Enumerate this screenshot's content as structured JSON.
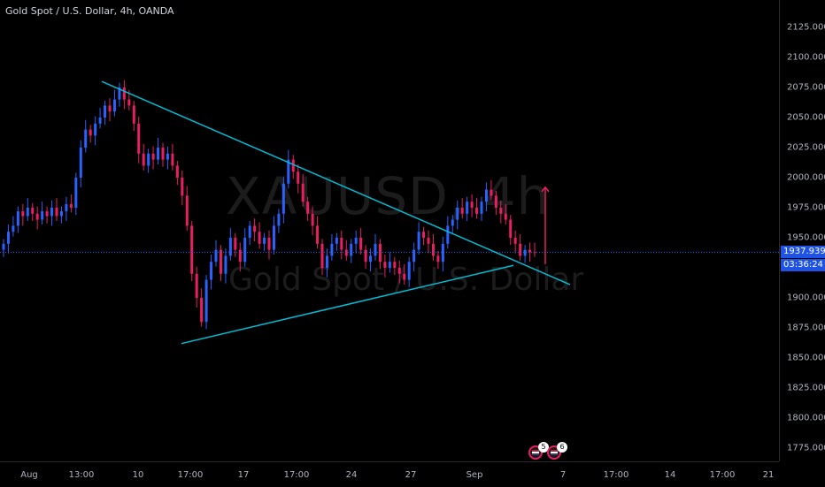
{
  "header": {
    "title": "Gold Spot / U.S. Dollar, 4h, OANDA"
  },
  "watermark": {
    "symbol": "XAUUSD, 4h",
    "name": "Gold Spot / U.S. Dollar"
  },
  "price_axis": {
    "labels": [
      "2125.000",
      "2100.000",
      "2075.000",
      "2050.000",
      "2025.000",
      "2000.000",
      "1975.000",
      "1950.000",
      "1900.000",
      "1875.000",
      "1850.000",
      "1825.000",
      "1800.000",
      "1775.000"
    ],
    "current_price": "1937.939",
    "countdown": "03:36:24"
  },
  "time_axis": {
    "labels": [
      "Aug",
      "13:00",
      "10",
      "17:00",
      "17",
      "17:00",
      "24",
      "27",
      "Sep",
      "7",
      "17:00",
      "14",
      "17:00",
      "21"
    ]
  },
  "events": [
    {
      "count": "5"
    },
    {
      "count": "6"
    }
  ],
  "colors": {
    "up": "#2962ff",
    "down": "#e91e63",
    "trendline": "#00bcd4",
    "arrow": "#e91e63",
    "price_line": "#2962ff"
  },
  "chart_data": {
    "type": "candlestick",
    "title": "Gold Spot / U.S. Dollar, 4h, OANDA",
    "ylim": [
      1770,
      2135
    ],
    "x_ticks": [
      "Aug",
      "13:00",
      "10",
      "17:00",
      "17",
      "17:00",
      "24",
      "27",
      "Sep",
      "7",
      "17:00",
      "14",
      "17:00",
      "21"
    ],
    "close_path": [
      1945,
      1955,
      1960,
      1972,
      1968,
      1975,
      1970,
      1965,
      1972,
      1968,
      1975,
      1968,
      1972,
      1978,
      1975,
      2000,
      2025,
      2040,
      2035,
      2045,
      2050,
      2060,
      2055,
      2065,
      2075,
      2065,
      2060,
      2045,
      2020,
      2010,
      2020,
      2015,
      2025,
      2015,
      2020,
      2010,
      2000,
      1985,
      1960,
      1920,
      1900,
      1880,
      1915,
      1930,
      1940,
      1920,
      1935,
      1950,
      1940,
      1930,
      1950,
      1960,
      1955,
      1945,
      1950,
      1940,
      1960,
      1970,
      1995,
      2015,
      2005,
      1995,
      1980,
      1970,
      1960,
      1945,
      1925,
      1935,
      1945,
      1950,
      1940,
      1935,
      1945,
      1950,
      1940,
      1930,
      1935,
      1945,
      1930,
      1925,
      1930,
      1925,
      1920,
      1915,
      1930,
      1940,
      1955,
      1950,
      1945,
      1935,
      1930,
      1945,
      1960,
      1965,
      1975,
      1970,
      1980,
      1975,
      1970,
      1980,
      1990,
      1985,
      1975,
      1970,
      1965,
      1950,
      1945,
      1935,
      1940,
      1938,
      1937.939
    ],
    "trendlines": [
      {
        "from": {
          "x": "Aug 4 ~21:00",
          "y": 2078
        },
        "to": {
          "x": "Sep 6 ~21:00",
          "y": 1913
        }
      },
      {
        "from": {
          "x": "Aug 9 ~14:00",
          "y": 1862
        },
        "to": {
          "x": "Sep 4 ~13:00",
          "y": 1926
        }
      }
    ],
    "projection_arrow": {
      "from": 1928,
      "to": 1992
    },
    "current_price": 1937.939
  }
}
